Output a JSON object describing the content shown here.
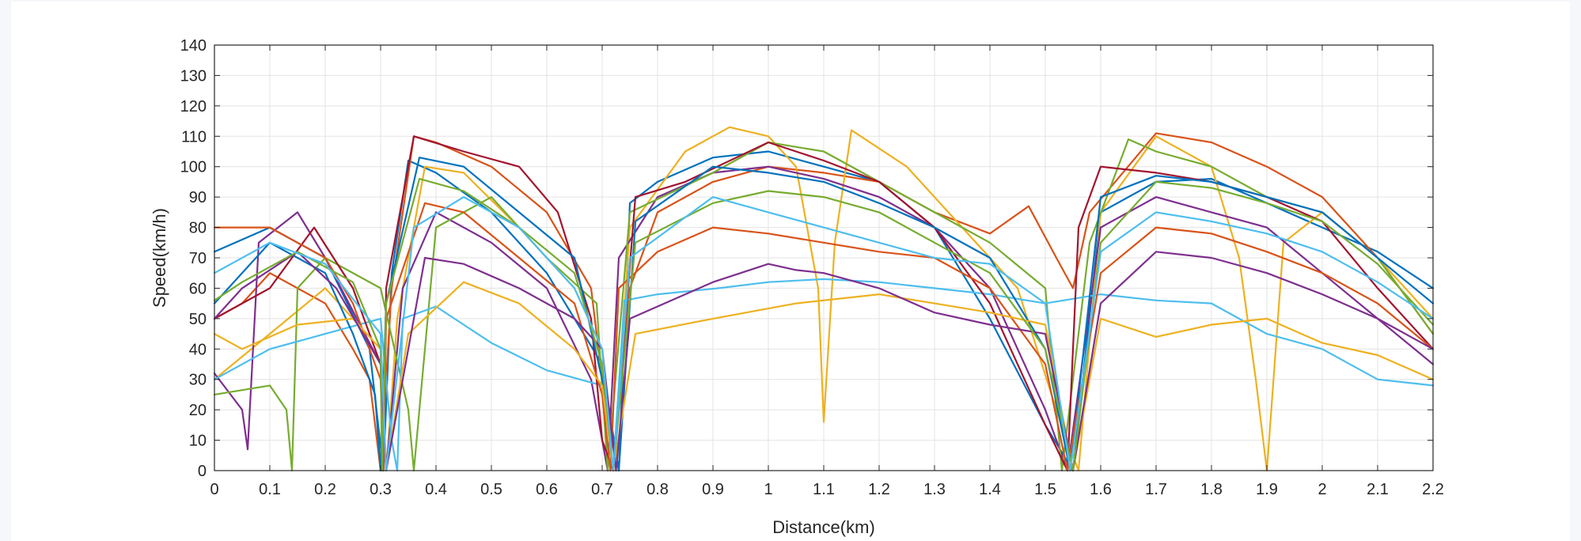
{
  "chart_data": {
    "type": "line",
    "title": "",
    "xlabel": "Distance(km)",
    "ylabel": "Speed(km/h)",
    "xlim": [
      0,
      2.2
    ],
    "ylim": [
      0,
      140
    ],
    "xticks": [
      0,
      0.1,
      0.2,
      0.3,
      0.4,
      0.5,
      0.6,
      0.7,
      0.8,
      0.9,
      1,
      1.1,
      1.2,
      1.3,
      1.4,
      1.5,
      1.6,
      1.7,
      1.8,
      1.9,
      2,
      2.1,
      2.2
    ],
    "yticks": [
      0,
      10,
      20,
      30,
      40,
      50,
      60,
      70,
      80,
      90,
      100,
      110,
      120,
      130,
      140
    ],
    "grid": true,
    "legend": "none",
    "colors": [
      "#0072BD",
      "#D95319",
      "#EDB120",
      "#7E2F8E",
      "#77AC30",
      "#4DBEEE",
      "#A2142F"
    ],
    "series": [
      {
        "x": [
          0,
          0.1,
          0.2,
          0.28,
          0.305,
          0.32,
          0.35,
          0.4,
          0.5,
          0.6,
          0.7,
          0.73,
          0.75,
          0.8,
          0.9,
          1.0,
          1.1,
          1.2,
          1.3,
          1.4,
          1.5,
          1.55,
          1.6,
          1.7,
          1.8,
          1.9,
          2.0,
          2.1,
          2.2
        ],
        "y": [
          72,
          80,
          70,
          40,
          0,
          65,
          102,
          98,
          85,
          65,
          35,
          0,
          88,
          95,
          103,
          105,
          100,
          95,
          80,
          50,
          15,
          0,
          85,
          95,
          96,
          88,
          80,
          72,
          60
        ]
      },
      {
        "x": [
          0,
          0.05,
          0.1,
          0.2,
          0.25,
          0.28,
          0.3,
          0.32,
          0.36,
          0.4,
          0.5,
          0.6,
          0.68,
          0.72,
          0.75,
          0.8,
          0.9,
          1.0,
          1.1,
          1.2,
          1.3,
          1.4,
          1.47,
          1.52,
          1.55,
          1.58,
          1.7,
          1.8,
          1.9,
          2.0,
          2.1,
          2.2
        ],
        "y": [
          50,
          55,
          65,
          55,
          40,
          30,
          0,
          60,
          110,
          108,
          100,
          85,
          60,
          0,
          60,
          85,
          95,
          100,
          98,
          95,
          85,
          78,
          87,
          70,
          60,
          85,
          111,
          108,
          100,
          90,
          70,
          45
        ]
      },
      {
        "x": [
          0,
          0.1,
          0.2,
          0.3,
          0.31,
          0.33,
          0.38,
          0.45,
          0.55,
          0.65,
          0.7,
          0.72,
          0.75,
          0.85,
          0.93,
          1.0,
          1.05,
          1.09,
          1.1,
          1.12,
          1.15,
          1.25,
          1.35,
          1.45,
          1.52,
          1.56,
          1.6,
          1.7,
          1.8,
          1.85,
          1.88,
          1.9,
          1.93,
          2.0,
          2.1,
          2.2
        ],
        "y": [
          30,
          45,
          60,
          40,
          0,
          50,
          100,
          98,
          80,
          60,
          40,
          0,
          80,
          105,
          113,
          110,
          100,
          60,
          16,
          75,
          112,
          100,
          80,
          60,
          20,
          0,
          85,
          110,
          100,
          70,
          30,
          0,
          75,
          85,
          70,
          50
        ]
      },
      {
        "x": [
          0,
          0.05,
          0.06,
          0.08,
          0.15,
          0.2,
          0.3,
          0.31,
          0.34,
          0.4,
          0.5,
          0.6,
          0.68,
          0.71,
          0.73,
          0.8,
          0.9,
          1.0,
          1.1,
          1.2,
          1.3,
          1.4,
          1.5,
          1.54,
          1.6,
          1.7,
          1.8,
          1.9,
          2.0,
          2.1,
          2.2
        ],
        "y": [
          32,
          20,
          7,
          75,
          85,
          70,
          35,
          0,
          60,
          85,
          75,
          60,
          30,
          0,
          70,
          90,
          98,
          100,
          96,
          90,
          80,
          60,
          20,
          0,
          80,
          90,
          85,
          80,
          65,
          50,
          35
        ]
      },
      {
        "x": [
          0,
          0.1,
          0.13,
          0.14,
          0.15,
          0.2,
          0.3,
          0.35,
          0.36,
          0.4,
          0.5,
          0.6,
          0.69,
          0.71,
          0.75,
          0.9,
          1.0,
          1.1,
          1.2,
          1.3,
          1.4,
          1.5,
          1.53,
          1.58,
          1.65,
          1.7,
          1.8,
          1.9,
          2.0,
          2.1,
          2.2
        ],
        "y": [
          25,
          28,
          20,
          0,
          60,
          70,
          60,
          20,
          0,
          80,
          90,
          70,
          55,
          0,
          85,
          98,
          108,
          105,
          95,
          85,
          75,
          60,
          0,
          75,
          109,
          105,
          100,
          90,
          85,
          70,
          45
        ]
      },
      {
        "x": [
          0,
          0.1,
          0.2,
          0.3,
          0.32,
          0.33,
          0.34,
          0.4,
          0.5,
          0.6,
          0.7,
          0.72,
          0.74,
          0.8,
          0.91,
          1.0,
          1.1,
          1.2,
          1.3,
          1.4,
          1.5,
          1.6,
          1.7,
          1.8,
          1.9,
          2.0,
          2.1,
          2.2
        ],
        "y": [
          30,
          40,
          45,
          50,
          10,
          0,
          50,
          54,
          42,
          33,
          28,
          0,
          56,
          58,
          60,
          62,
          63,
          62,
          60,
          58,
          55,
          58,
          56,
          55,
          45,
          40,
          30,
          28
        ]
      },
      {
        "x": [
          0,
          0.1,
          0.18,
          0.25,
          0.3,
          0.305,
          0.31,
          0.36,
          0.45,
          0.55,
          0.62,
          0.68,
          0.7,
          0.72,
          0.76,
          0.85,
          1.0,
          1.1,
          1.2,
          1.3,
          1.4,
          1.5,
          1.54,
          1.56,
          1.6,
          1.7,
          1.8,
          1.9,
          2.0,
          2.1,
          2.2
        ],
        "y": [
          50,
          60,
          80,
          60,
          35,
          0,
          60,
          110,
          105,
          100,
          85,
          50,
          10,
          0,
          90,
          95,
          108,
          102,
          95,
          80,
          55,
          15,
          0,
          80,
          100,
          98,
          95,
          90,
          82,
          60,
          40
        ]
      },
      {
        "x": [
          0,
          0.1,
          0.2,
          0.25,
          0.29,
          0.3,
          0.31,
          0.37,
          0.45,
          0.55,
          0.65,
          0.7,
          0.73,
          0.76,
          0.9,
          1.0,
          1.1,
          1.2,
          1.3,
          1.4,
          1.5,
          1.545,
          1.6,
          1.7,
          1.8,
          1.9,
          2.0,
          2.1,
          2.2
        ],
        "y": [
          55,
          75,
          65,
          45,
          25,
          0,
          55,
          103,
          100,
          85,
          70,
          30,
          0,
          82,
          100,
          98,
          95,
          88,
          80,
          70,
          40,
          0,
          90,
          97,
          95,
          90,
          85,
          70,
          55
        ]
      },
      {
        "x": [
          0,
          0.1,
          0.2,
          0.25,
          0.3,
          0.305,
          0.31,
          0.38,
          0.45,
          0.55,
          0.65,
          0.7,
          0.715,
          0.73,
          0.8,
          0.9,
          1.0,
          1.1,
          1.2,
          1.3,
          1.4,
          1.5,
          1.54,
          1.6,
          1.7,
          1.8,
          1.9,
          2.0,
          2.1,
          2.2
        ],
        "y": [
          80,
          80,
          70,
          55,
          30,
          0,
          50,
          88,
          85,
          70,
          55,
          25,
          0,
          60,
          72,
          80,
          78,
          75,
          72,
          70,
          60,
          35,
          0,
          65,
          80,
          78,
          72,
          65,
          55,
          40
        ]
      },
      {
        "x": [
          0,
          0.05,
          0.15,
          0.25,
          0.3,
          0.31,
          0.35,
          0.45,
          0.55,
          0.65,
          0.7,
          0.72,
          0.76,
          0.9,
          1.05,
          1.2,
          1.3,
          1.4,
          1.5,
          1.55,
          1.6,
          1.7,
          1.8,
          1.9,
          2.0,
          2.1,
          2.2
        ],
        "y": [
          45,
          40,
          48,
          50,
          40,
          0,
          45,
          62,
          55,
          40,
          28,
          0,
          45,
          50,
          55,
          58,
          55,
          52,
          48,
          0,
          50,
          44,
          48,
          50,
          42,
          38,
          30
        ]
      },
      {
        "x": [
          0,
          0.05,
          0.15,
          0.22,
          0.3,
          0.31,
          0.38,
          0.45,
          0.55,
          0.65,
          0.7,
          0.725,
          0.75,
          0.9,
          1.0,
          1.05,
          1.1,
          1.2,
          1.3,
          1.4,
          1.5,
          1.55,
          1.6,
          1.7,
          1.8,
          1.9,
          2.0,
          2.1,
          2.2
        ],
        "y": [
          50,
          60,
          72,
          60,
          35,
          0,
          70,
          68,
          60,
          50,
          40,
          0,
          50,
          62,
          68,
          66,
          65,
          60,
          52,
          48,
          45,
          0,
          55,
          72,
          70,
          65,
          58,
          50,
          40
        ]
      },
      {
        "x": [
          0,
          0.05,
          0.15,
          0.25,
          0.3,
          0.3025,
          0.31,
          0.37,
          0.45,
          0.55,
          0.65,
          0.7,
          0.72,
          0.76,
          0.9,
          1.0,
          1.1,
          1.2,
          1.3,
          1.4,
          1.5,
          1.55,
          1.6,
          1.7,
          1.8,
          1.9,
          2.0,
          2.1,
          2.2
        ],
        "y": [
          56,
          62,
          72,
          62,
          40,
          0,
          55,
          96,
          92,
          80,
          65,
          35,
          0,
          75,
          88,
          92,
          90,
          85,
          75,
          65,
          40,
          0,
          75,
          95,
          93,
          88,
          82,
          68,
          48
        ]
      },
      {
        "x": [
          0,
          0.1,
          0.2,
          0.3,
          0.31,
          0.36,
          0.45,
          0.55,
          0.65,
          0.7,
          0.72,
          0.75,
          0.9,
          1.0,
          1.1,
          1.2,
          1.3,
          1.4,
          1.5,
          1.545,
          1.6,
          1.7,
          1.8,
          1.9,
          2.0,
          2.1,
          2.2
        ],
        "y": [
          65,
          75,
          68,
          45,
          0,
          80,
          90,
          80,
          60,
          40,
          0,
          70,
          90,
          85,
          80,
          75,
          70,
          68,
          55,
          0,
          72,
          85,
          82,
          78,
          72,
          62,
          50
        ]
      }
    ]
  }
}
